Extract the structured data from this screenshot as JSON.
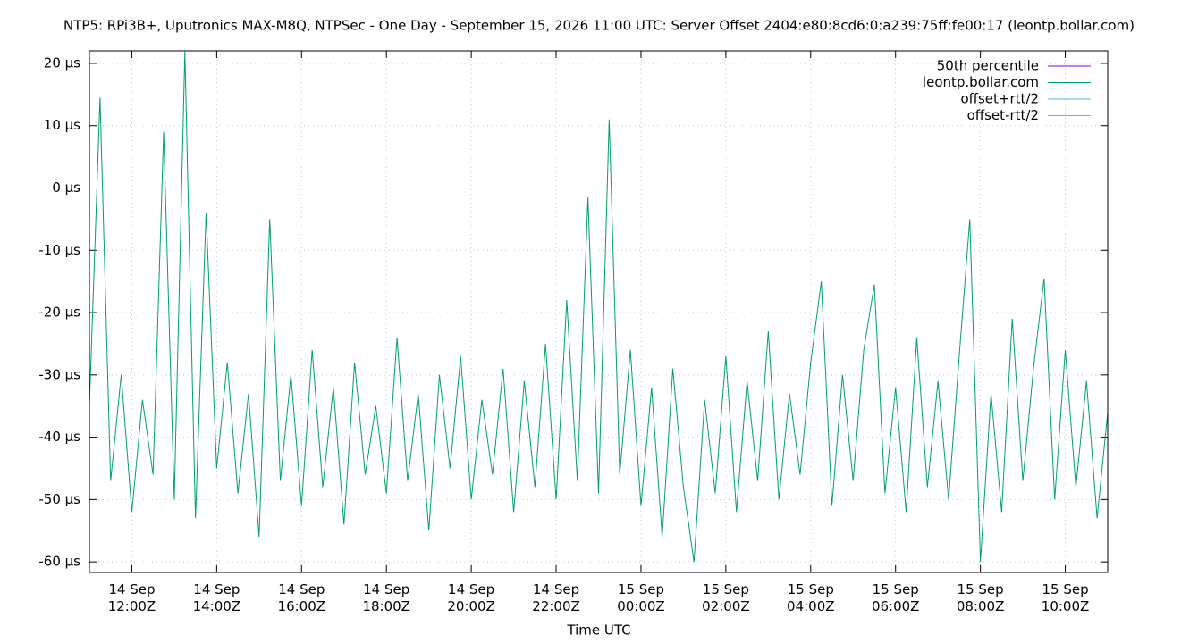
{
  "chart_data": {
    "type": "line",
    "title": "NTP5: RPi3B+, Uputronics MAX-M8Q, NTPSec - One Day - September 15, 2026 11:00 UTC: Server Offset 2404:e80:8cd6:0:a239:75ff:fe00:17 (leontp.bollar.com)",
    "x_label": "Time UTC",
    "grid": true,
    "legend": "top-right",
    "xlim": [
      11,
      35
    ],
    "ylim": [
      -61.7,
      22
    ],
    "xticks": [
      {
        "value": 12,
        "label": "14 Sep\n12:00Z"
      },
      {
        "value": 14,
        "label": "14 Sep\n14:00Z"
      },
      {
        "value": 16,
        "label": "14 Sep\n16:00Z"
      },
      {
        "value": 18,
        "label": "14 Sep\n18:00Z"
      },
      {
        "value": 20,
        "label": "14 Sep\n20:00Z"
      },
      {
        "value": 22,
        "label": "14 Sep\n22:00Z"
      },
      {
        "value": 24,
        "label": "15 Sep\n00:00Z"
      },
      {
        "value": 26,
        "label": "15 Sep\n02:00Z"
      },
      {
        "value": 28,
        "label": "15 Sep\n04:00Z"
      },
      {
        "value": 30,
        "label": "15 Sep\n06:00Z"
      },
      {
        "value": 32,
        "label": "15 Sep\n08:00Z"
      },
      {
        "value": 34,
        "label": "15 Sep\n10:00Z"
      }
    ],
    "yticks": [
      {
        "value": 20,
        "label": "20 µs"
      },
      {
        "value": 10,
        "label": "10 µs"
      },
      {
        "value": 0,
        "label": "0 µs"
      },
      {
        "value": -10,
        "label": "-10 µs"
      },
      {
        "value": -20,
        "label": "-20 µs"
      },
      {
        "value": -30,
        "label": "-30 µs"
      },
      {
        "value": -40,
        "label": "-40 µs"
      },
      {
        "value": -50,
        "label": "-50 µs"
      },
      {
        "value": -60,
        "label": "-60 µs"
      }
    ],
    "x": [
      11,
      11.25,
      11.5,
      11.75,
      12,
      12.25,
      12.5,
      12.75,
      13,
      13.25,
      13.5,
      13.75,
      14,
      14.25,
      14.5,
      14.75,
      15,
      15.25,
      15.5,
      15.75,
      16,
      16.25,
      16.5,
      16.75,
      17,
      17.25,
      17.5,
      17.75,
      18,
      18.25,
      18.5,
      18.75,
      19,
      19.25,
      19.5,
      19.75,
      20,
      20.25,
      20.5,
      20.75,
      21,
      21.25,
      21.5,
      21.75,
      22,
      22.25,
      22.5,
      22.75,
      23,
      23.25,
      23.5,
      23.75,
      24,
      24.25,
      24.5,
      24.75,
      25,
      25.25,
      25.5,
      25.75,
      26,
      26.25,
      26.5,
      26.75,
      27,
      27.25,
      27.5,
      27.75,
      28,
      28.25,
      28.5,
      28.75,
      29,
      29.25,
      29.5,
      29.75,
      30,
      30.25,
      30.5,
      30.75,
      31,
      31.25,
      31.5,
      31.75,
      32,
      32.25,
      32.5,
      32.75,
      33,
      33.25,
      33.5,
      33.75,
      34,
      34.25,
      34.5,
      34.75,
      35
    ],
    "series": [
      {
        "name": "50th percentile",
        "color": "#9400d3"
      },
      {
        "name": "leontp.bollar.com",
        "color": "#009e73",
        "values": [
          -35,
          14.5,
          -47,
          -30,
          -52,
          -34,
          -46,
          9,
          -50,
          21.9,
          -53,
          -4,
          -45,
          -28,
          -49,
          -33,
          -56,
          -5,
          -47,
          -30,
          -51,
          -26,
          -48,
          -32,
          -54,
          -28,
          -46,
          -35,
          -49,
          -24,
          -47,
          -33,
          -55,
          -30,
          -45,
          -27,
          -50,
          -34,
          -46,
          -29,
          -52,
          -31,
          -48,
          -25,
          -50,
          -18,
          -47,
          -1.5,
          -49,
          11,
          -46,
          -26,
          -51,
          -32,
          -56,
          -29,
          -48,
          -60,
          -34,
          -49,
          -27,
          -52,
          -31,
          -47,
          -23,
          -50,
          -33,
          -46,
          -28,
          -15,
          -51,
          -30,
          -47,
          -26,
          -15.5,
          -49,
          -32,
          -52,
          -24,
          -48,
          -31,
          -50,
          -27,
          -5,
          -60,
          -33,
          -52,
          -21,
          -47,
          -29,
          -14.5,
          -50,
          -26,
          -48,
          -31,
          -53,
          -36
        ]
      },
      {
        "name": "offset+rtt/2",
        "color": "#56b4e9"
      },
      {
        "name": "offset-rtt/2",
        "color": "#e69f00"
      }
    ]
  }
}
